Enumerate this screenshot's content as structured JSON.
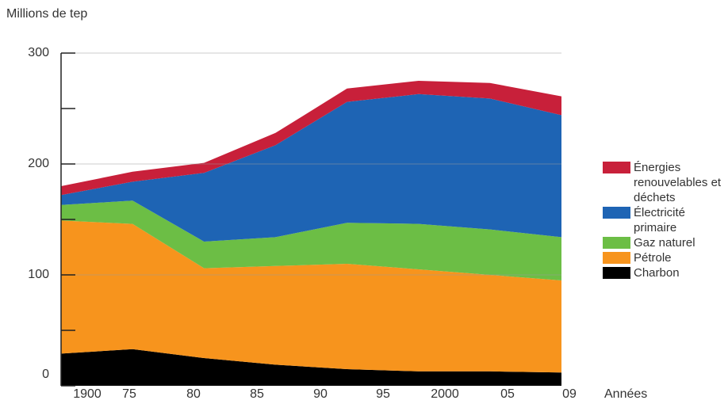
{
  "chart_data": {
    "type": "stacked_area",
    "y_label": "Millions de tep",
    "x_label": "Années",
    "categories": [
      null,
      null,
      null,
      null,
      null,
      null,
      null,
      null
    ],
    "x_labels": [
      "1900",
      "75",
      "80",
      "85",
      "90",
      "95",
      "2000",
      "05",
      "09"
    ],
    "ylim": [
      0,
      300
    ],
    "yticks": [
      0,
      100,
      200,
      300
    ],
    "minor_yticks": [
      50,
      150,
      250
    ],
    "grid": true,
    "series": [
      {
        "name": "Charbon",
        "color": "#000000",
        "values": [
          29,
          33,
          25,
          19,
          15,
          13,
          13,
          12
        ]
      },
      {
        "name": "Pétrole",
        "color": "#f7941d",
        "values": [
          120,
          113,
          81,
          89,
          95,
          92,
          87,
          83
        ]
      },
      {
        "name": "Gaz naturel",
        "color": "#6cbe45",
        "values": [
          14,
          21,
          24,
          26,
          37,
          41,
          41,
          39
        ]
      },
      {
        "name": "Électricité primaire",
        "color": "#1e64b4",
        "values": [
          9,
          17,
          62,
          83,
          109,
          117,
          118,
          110
        ]
      },
      {
        "name": "Énergies renouvelables et déchets",
        "color": "#c8203a",
        "values": [
          8,
          9,
          9,
          11,
          12,
          12,
          14,
          17
        ]
      }
    ]
  }
}
